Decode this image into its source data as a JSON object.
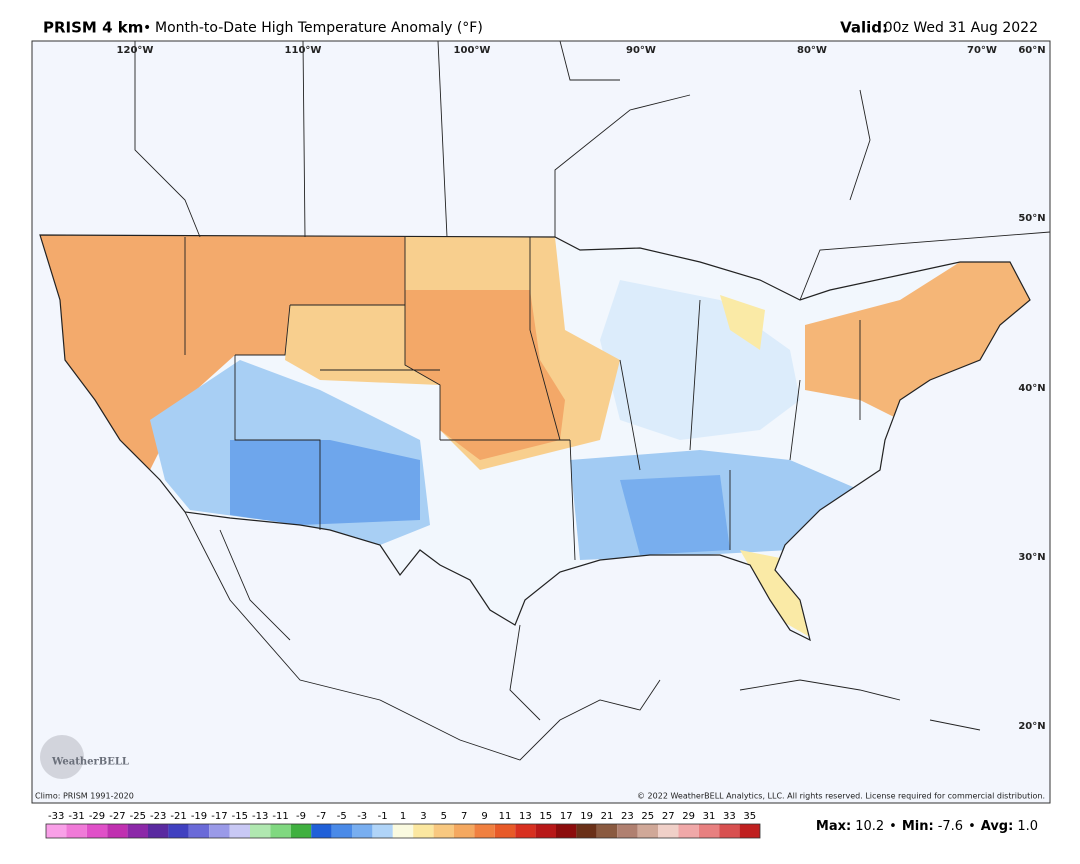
{
  "header": {
    "product": "PRISM 4 km",
    "separator": "•",
    "title": "Month-to-Date High Temperature Anomaly (°F)",
    "valid_label": "Valid:",
    "valid_time": "00z Wed 31 Aug 2022"
  },
  "map": {
    "longitude_labels": [
      "120°W",
      "110°W",
      "100°W",
      "90°W",
      "80°W",
      "70°W"
    ],
    "latitude_labels": [
      "60°N",
      "50°N",
      "40°N",
      "30°N",
      "20°N"
    ],
    "logo": "WeatherBELL"
  },
  "footer": {
    "climo": "Climo: PRISM 1991-2020",
    "copyright": "© 2022 WeatherBELL Analytics, LLC. All rights reserved. License required for commercial distribution."
  },
  "colorbar": {
    "values": [
      -33,
      -31,
      -29,
      -27,
      -25,
      -23,
      -21,
      -19,
      -17,
      -15,
      -13,
      -11,
      -9,
      -7,
      -5,
      -3,
      -1,
      1,
      3,
      5,
      7,
      9,
      11,
      13,
      15,
      17,
      19,
      21,
      23,
      25,
      27,
      29,
      31,
      33,
      35
    ],
    "colors": [
      "#f9a0e8",
      "#f07ad8",
      "#e050c8",
      "#c030b0",
      "#8c28a8",
      "#5a2aa0",
      "#4040c0",
      "#6a6ad8",
      "#9a9ae8",
      "#c8c8f4",
      "#b0e8b0",
      "#80d880",
      "#40b040",
      "#2060d8",
      "#4a8ae8",
      "#78aef0",
      "#b0d4f8",
      "#fafae0",
      "#fbe7a0",
      "#f8c880",
      "#f4a860",
      "#f08040",
      "#e85a28",
      "#d83020",
      "#b81818",
      "#8c0c0c",
      "#6a3018",
      "#8a5a40",
      "#b08070",
      "#d0a898",
      "#f0d0c8",
      "#f0a8a8",
      "#e88080",
      "#d85050",
      "#c02020"
    ]
  },
  "stats": [
    {
      "label": "Max:",
      "value": "10.2"
    },
    {
      "label": "Min:",
      "value": "-7.6"
    },
    {
      "label": "Avg:",
      "value": "1.0"
    }
  ],
  "stat_separator": "•"
}
